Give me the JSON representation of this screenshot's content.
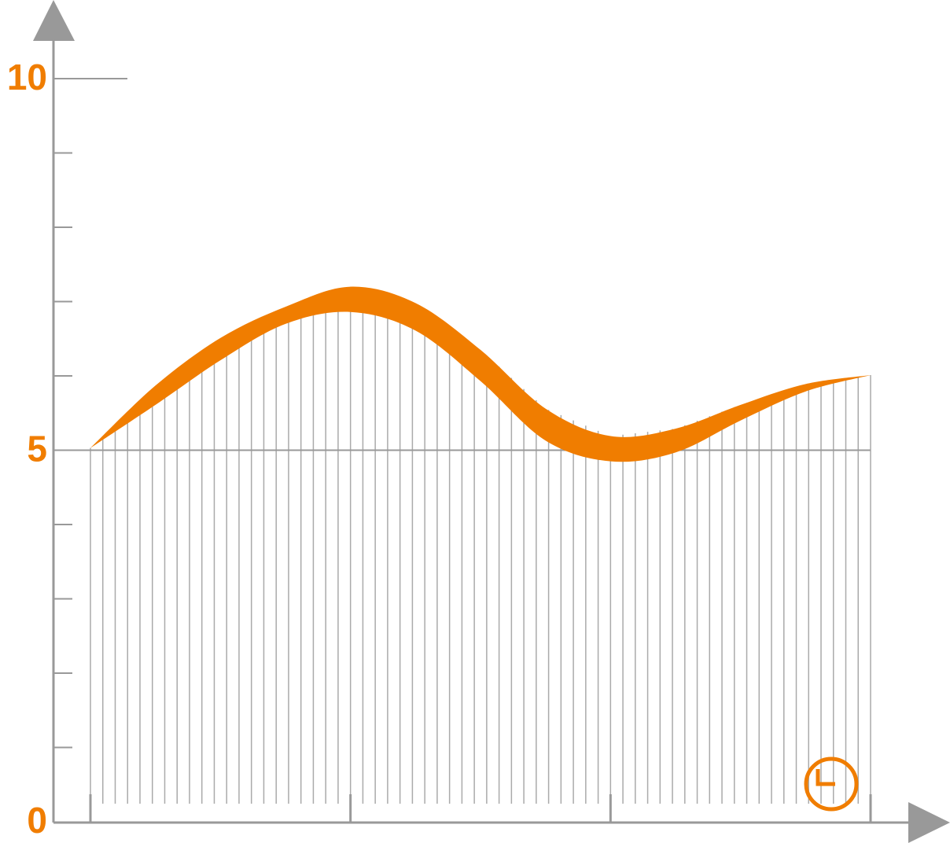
{
  "chart_data": {
    "type": "band",
    "color": "#f07d00",
    "x": [
      0,
      0.25,
      0.5,
      0.75,
      1,
      1.25,
      1.5,
      1.75,
      2,
      2.25,
      2.5,
      2.75,
      3
    ],
    "upper": [
      5.03,
      5.87,
      6.51,
      6.93,
      7.2,
      6.98,
      6.35,
      5.56,
      5.19,
      5.29,
      5.61,
      5.89,
      6.01
    ],
    "lower": [
      5.03,
      5.61,
      6.21,
      6.7,
      6.86,
      6.61,
      5.93,
      5.13,
      4.85,
      4.97,
      5.4,
      5.79,
      6.01
    ],
    "xlim": [
      0,
      3
    ],
    "xticks": [
      0,
      1,
      2,
      3
    ],
    "ylim": [
      0,
      10
    ],
    "yticks": [
      0,
      5,
      10
    ],
    "minor_yticks": [
      1,
      2,
      3,
      4,
      6,
      7,
      8,
      9
    ]
  }
}
